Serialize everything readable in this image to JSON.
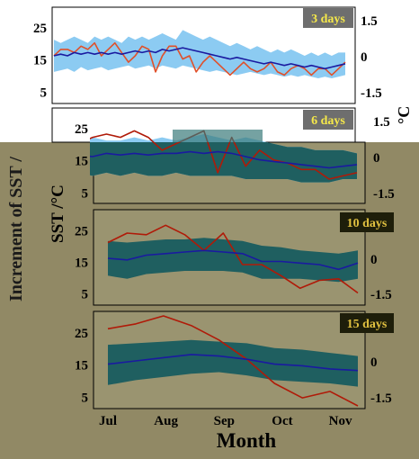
{
  "figure": {
    "y_left_label_top": "SST /°C",
    "y_left_label_lower": "SST /°C",
    "y_outer_label": "Increment of SST /",
    "x_label": "Month",
    "right_fragment": "°C"
  },
  "colors": {
    "top_band": "#8ccbf2",
    "lower_band": "#1f5f60",
    "mean_line": "#1a1aa0",
    "sst_line_top": "#e0502a",
    "sst_line_lower": "#b01a08",
    "badge_top_bg": "#6e6e6e",
    "badge_top_text": "#f5e84a",
    "badge_lower_bg": "#1e1e0a",
    "badge_lower_text": "#e0c040",
    "panel_top_bg": "#ffffff",
    "panel_lower_bg": "#9a9470",
    "lower_background": "#918965"
  },
  "chart_data": [
    {
      "type": "line",
      "title": "3 days",
      "x": [
        0,
        1,
        2,
        3,
        4,
        5,
        6,
        7,
        8,
        9,
        10,
        11,
        12,
        13,
        14,
        15,
        16,
        17,
        18,
        19,
        20,
        21,
        22,
        23,
        24,
        25,
        26,
        27,
        28,
        29,
        30,
        31,
        32,
        33,
        34,
        35,
        36,
        37,
        38,
        39,
        40,
        41,
        42,
        43
      ],
      "xlim": [
        0,
        43
      ],
      "ylim": [
        2,
        30
      ],
      "yticks": [
        5,
        15,
        25
      ],
      "y2lim": [
        -2.1,
        2.1
      ],
      "y2ticks": [
        "1.5",
        "0",
        "-1.5"
      ],
      "series": [
        {
          "role": "band",
          "values_low": [
            11,
            11.5,
            12,
            11,
            12.5,
            11.5,
            12,
            12.5,
            11.5,
            12,
            12.5,
            13,
            12,
            12.5,
            13,
            12,
            13,
            12.5,
            12,
            13,
            12.5,
            12,
            11.5,
            11,
            11.5,
            11,
            10.5,
            10,
            10.5,
            11,
            10.5,
            10,
            10.5,
            10,
            9.5,
            10,
            9.5,
            10,
            9.5,
            9,
            9.5,
            9,
            9.5,
            10
          ],
          "values_high": [
            21,
            20,
            21,
            22,
            21,
            20,
            22,
            21,
            22,
            21,
            20,
            22,
            21,
            22,
            21,
            22,
            23,
            22,
            21,
            24,
            23,
            22,
            21,
            22,
            21,
            20,
            19,
            20,
            19,
            18,
            19,
            18,
            17,
            18,
            17,
            18,
            17,
            16,
            17,
            16,
            17,
            16,
            17,
            17
          ]
        },
        {
          "role": "mean",
          "values": [
            16,
            16.5,
            16,
            17,
            16.5,
            17,
            16.5,
            17,
            16.5,
            17,
            16.5,
            17,
            17.5,
            17,
            17.5,
            17,
            18,
            17.5,
            18,
            18.5,
            18,
            17.5,
            17,
            16.5,
            16,
            15.5,
            15,
            15.5,
            15,
            14.5,
            14,
            13.5,
            14,
            13.5,
            13,
            13.5,
            13,
            12.5,
            13,
            12.5,
            12,
            12.5,
            13,
            13.5
          ]
        },
        {
          "role": "sst",
          "values": [
            16,
            18,
            18,
            17,
            19,
            18,
            20,
            16,
            18,
            20,
            17,
            14,
            16,
            19,
            18,
            11,
            16,
            19,
            19,
            15,
            16,
            11,
            14,
            16,
            14,
            12,
            10,
            12,
            14,
            12,
            11,
            12,
            14,
            11,
            10,
            12,
            13,
            12,
            10,
            12,
            12,
            10,
            12,
            14
          ]
        }
      ],
      "label": "3 days"
    },
    {
      "type": "line",
      "title": "6 days",
      "x": [
        0,
        1,
        2,
        3,
        4,
        5,
        6,
        7,
        8,
        9,
        10,
        11,
        12,
        13,
        14,
        15,
        16,
        17,
        18,
        19,
        20,
        21
      ],
      "xlim": [
        0,
        21
      ],
      "ylim": [
        2,
        30
      ],
      "yticks": [
        5,
        15,
        25
      ],
      "y2lim": [
        -2.1,
        2.1
      ],
      "y2ticks": [
        "1.5",
        "0",
        "-1.5"
      ],
      "series": [
        {
          "role": "band",
          "values_low": [
            11,
            11,
            10,
            11,
            10,
            11,
            10,
            10,
            11,
            10,
            10,
            10,
            10,
            9,
            9,
            9,
            9,
            8,
            8,
            8,
            9,
            9
          ],
          "values_high": [
            21,
            20,
            22,
            21,
            21,
            22,
            21,
            22,
            21,
            22,
            23,
            22,
            21,
            22,
            21,
            20,
            19,
            19,
            18,
            18,
            18,
            17
          ]
        },
        {
          "role": "mean",
          "values": [
            16,
            16.5,
            16,
            17,
            16.5,
            17,
            16.5,
            17,
            17,
            17.5,
            17,
            17.5,
            17,
            16,
            15,
            14.5,
            14,
            13.5,
            13,
            12.5,
            13,
            13.5
          ]
        },
        {
          "role": "sst",
          "values": [
            19,
            20,
            22,
            23,
            22,
            24,
            22,
            18,
            20,
            22,
            24,
            11,
            22,
            13,
            18,
            15,
            14,
            12,
            12,
            9,
            10,
            11
          ]
        }
      ],
      "label": "6 days"
    },
    {
      "type": "line",
      "title": "10 days",
      "x": [
        0,
        1,
        2,
        3,
        4,
        5,
        6,
        7,
        8,
        9,
        10,
        11,
        12,
        13
      ],
      "xlim": [
        0,
        13
      ],
      "ylim": [
        2,
        30
      ],
      "yticks": [
        5,
        15,
        25
      ],
      "y2lim": [
        -2.1,
        2.1
      ],
      "y2ticks": [
        "1.5",
        "0",
        "-1.5"
      ],
      "series": [
        {
          "role": "band",
          "values_low": [
            10.5,
            9.5,
            11,
            11.5,
            12,
            12,
            12,
            11.5,
            9.5,
            9.5,
            9.5,
            9,
            8.5,
            9.5
          ],
          "values_high": [
            21.5,
            21,
            21.5,
            22,
            22,
            22.5,
            22,
            21.5,
            20,
            19.5,
            18.5,
            18,
            17.5,
            18.5
          ]
        },
        {
          "role": "mean",
          "values": [
            16,
            15.5,
            17,
            17.5,
            18,
            18.5,
            18,
            17.5,
            15,
            15,
            14.5,
            14,
            12.5,
            14.5
          ]
        },
        {
          "role": "sst",
          "values": [
            21,
            24,
            23.5,
            26.5,
            23.5,
            18.5,
            24,
            14,
            14,
            10.5,
            6.5,
            9,
            9.5,
            5
          ]
        }
      ],
      "label": "10 days"
    },
    {
      "type": "line",
      "title": "15 days",
      "x": [
        0,
        1,
        2,
        3,
        4,
        5,
        6,
        7,
        8,
        9
      ],
      "xlim": [
        0,
        9
      ],
      "ylim": [
        2,
        30
      ],
      "yticks": [
        5,
        15,
        25
      ],
      "y2lim": [
        -2.1,
        2.1
      ],
      "y2ticks": [
        "1.5",
        "0",
        "-1.5"
      ],
      "xticks": [
        "Jul",
        "Aug",
        "Sep",
        "Oct",
        "Nov"
      ],
      "series": [
        {
          "role": "band",
          "values_low": [
            8.5,
            10,
            11,
            12,
            12.5,
            11.5,
            10,
            9.5,
            9,
            8
          ],
          "values_high": [
            21,
            21.5,
            22,
            22.5,
            22,
            21.5,
            20,
            19.5,
            18.5,
            17.5
          ]
        },
        {
          "role": "mean",
          "values": [
            15,
            16,
            17,
            18,
            17.5,
            16.5,
            15,
            14.5,
            13.5,
            13
          ]
        },
        {
          "role": "sst",
          "values": [
            26,
            27.5,
            30,
            27,
            22.5,
            16.5,
            9,
            4.5,
            6.5,
            2
          ]
        }
      ],
      "label": "15 days"
    }
  ]
}
